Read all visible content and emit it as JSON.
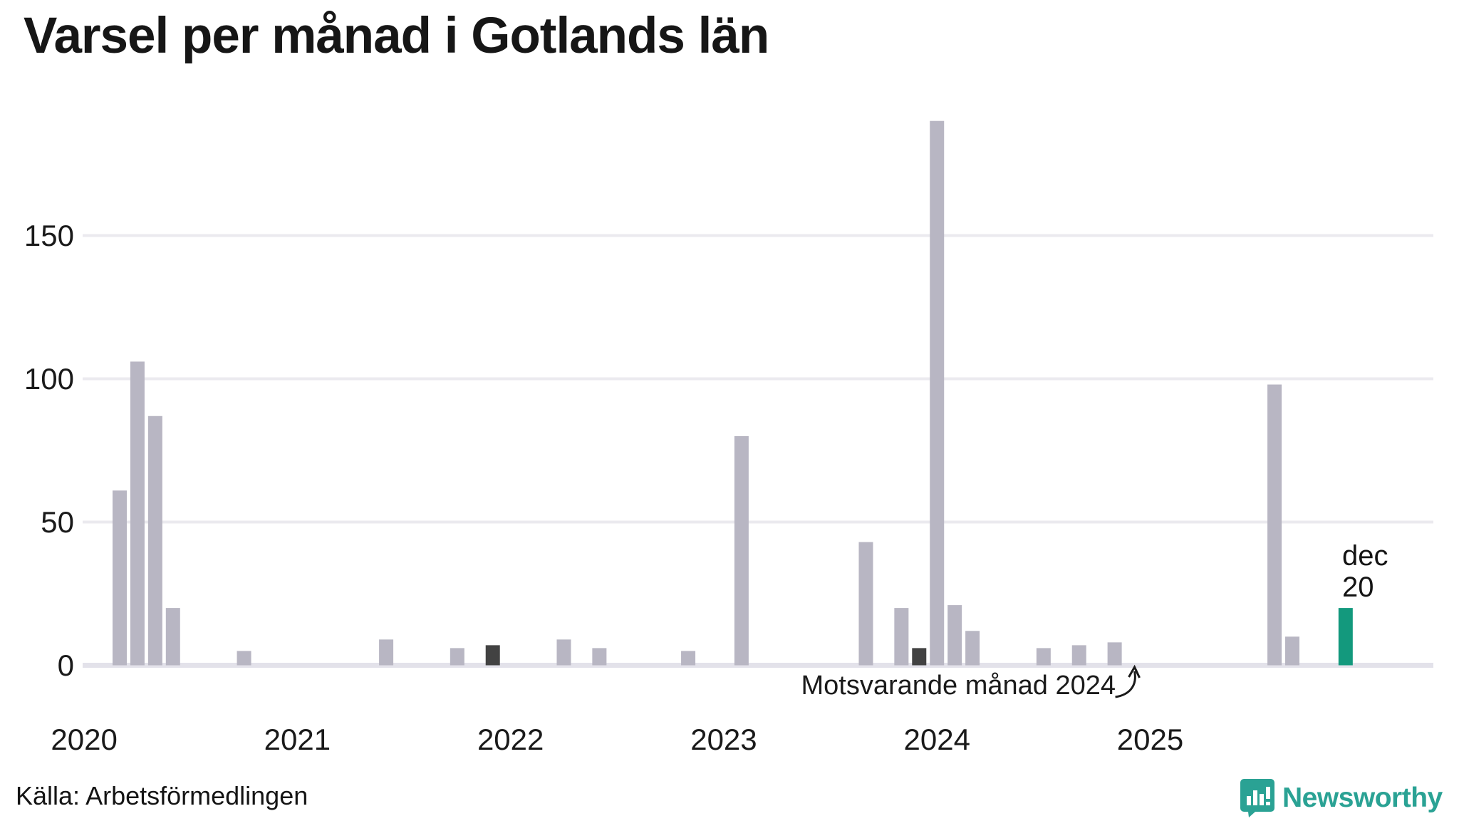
{
  "title": "Varsel per månad i Gotlands län",
  "source_line": "Källa: Arbetsförmedlingen",
  "brand": {
    "name": "Newsworthy",
    "icon": "newsworthy-bubble-barchart-icon"
  },
  "annotation": {
    "text": "Motsvarande månad 2024",
    "target_month": "2024-12"
  },
  "latest_label": {
    "line1": "dec",
    "line2": "20"
  },
  "colors": {
    "bar_default": "#b8b6c3",
    "bar_highlight_dark": "#424242",
    "bar_accent_teal": "#13997d",
    "gridline": "#ebeaef",
    "baseline": "#e3e2ea",
    "axis_text": "#1a1a1a",
    "logo_teal": "#2aa294"
  },
  "chart_data": {
    "type": "bar",
    "title": "Varsel per månad i Gotlands län",
    "xlabel": "",
    "ylabel": "",
    "x_range": [
      "2020-01",
      "2025-12"
    ],
    "ylim": [
      0,
      200
    ],
    "y_ticks": [
      0,
      50,
      100,
      150
    ],
    "x_ticks": [
      "2020",
      "2021",
      "2022",
      "2023",
      "2024",
      "2025"
    ],
    "grid": "horizontal",
    "legend": "none",
    "series": [
      {
        "month": "2020-03",
        "value": 61,
        "highlight": "default"
      },
      {
        "month": "2020-04",
        "value": 106,
        "highlight": "default"
      },
      {
        "month": "2020-05",
        "value": 87,
        "highlight": "default"
      },
      {
        "month": "2020-06",
        "value": 20,
        "highlight": "default"
      },
      {
        "month": "2020-10",
        "value": 5,
        "highlight": "default"
      },
      {
        "month": "2021-06",
        "value": 9,
        "highlight": "default"
      },
      {
        "month": "2021-10",
        "value": 6,
        "highlight": "default"
      },
      {
        "month": "2021-12",
        "value": 7,
        "highlight": "dark"
      },
      {
        "month": "2022-04",
        "value": 9,
        "highlight": "default"
      },
      {
        "month": "2022-06",
        "value": 6,
        "highlight": "default"
      },
      {
        "month": "2022-11",
        "value": 5,
        "highlight": "default"
      },
      {
        "month": "2023-02",
        "value": 80,
        "highlight": "default"
      },
      {
        "month": "2023-09",
        "value": 43,
        "highlight": "default"
      },
      {
        "month": "2023-11",
        "value": 20,
        "highlight": "default"
      },
      {
        "month": "2023-12",
        "value": 6,
        "highlight": "dark"
      },
      {
        "month": "2024-01",
        "value": 190,
        "highlight": "default"
      },
      {
        "month": "2024-02",
        "value": 21,
        "highlight": "default"
      },
      {
        "month": "2024-03",
        "value": 12,
        "highlight": "default"
      },
      {
        "month": "2024-07",
        "value": 6,
        "highlight": "default"
      },
      {
        "month": "2024-09",
        "value": 7,
        "highlight": "default"
      },
      {
        "month": "2024-11",
        "value": 8,
        "highlight": "default"
      },
      {
        "month": "2024-12",
        "value": 0,
        "highlight": "dark"
      },
      {
        "month": "2025-08",
        "value": 98,
        "highlight": "default"
      },
      {
        "month": "2025-09",
        "value": 10,
        "highlight": "default"
      },
      {
        "month": "2025-12",
        "value": 20,
        "highlight": "accent"
      }
    ]
  }
}
